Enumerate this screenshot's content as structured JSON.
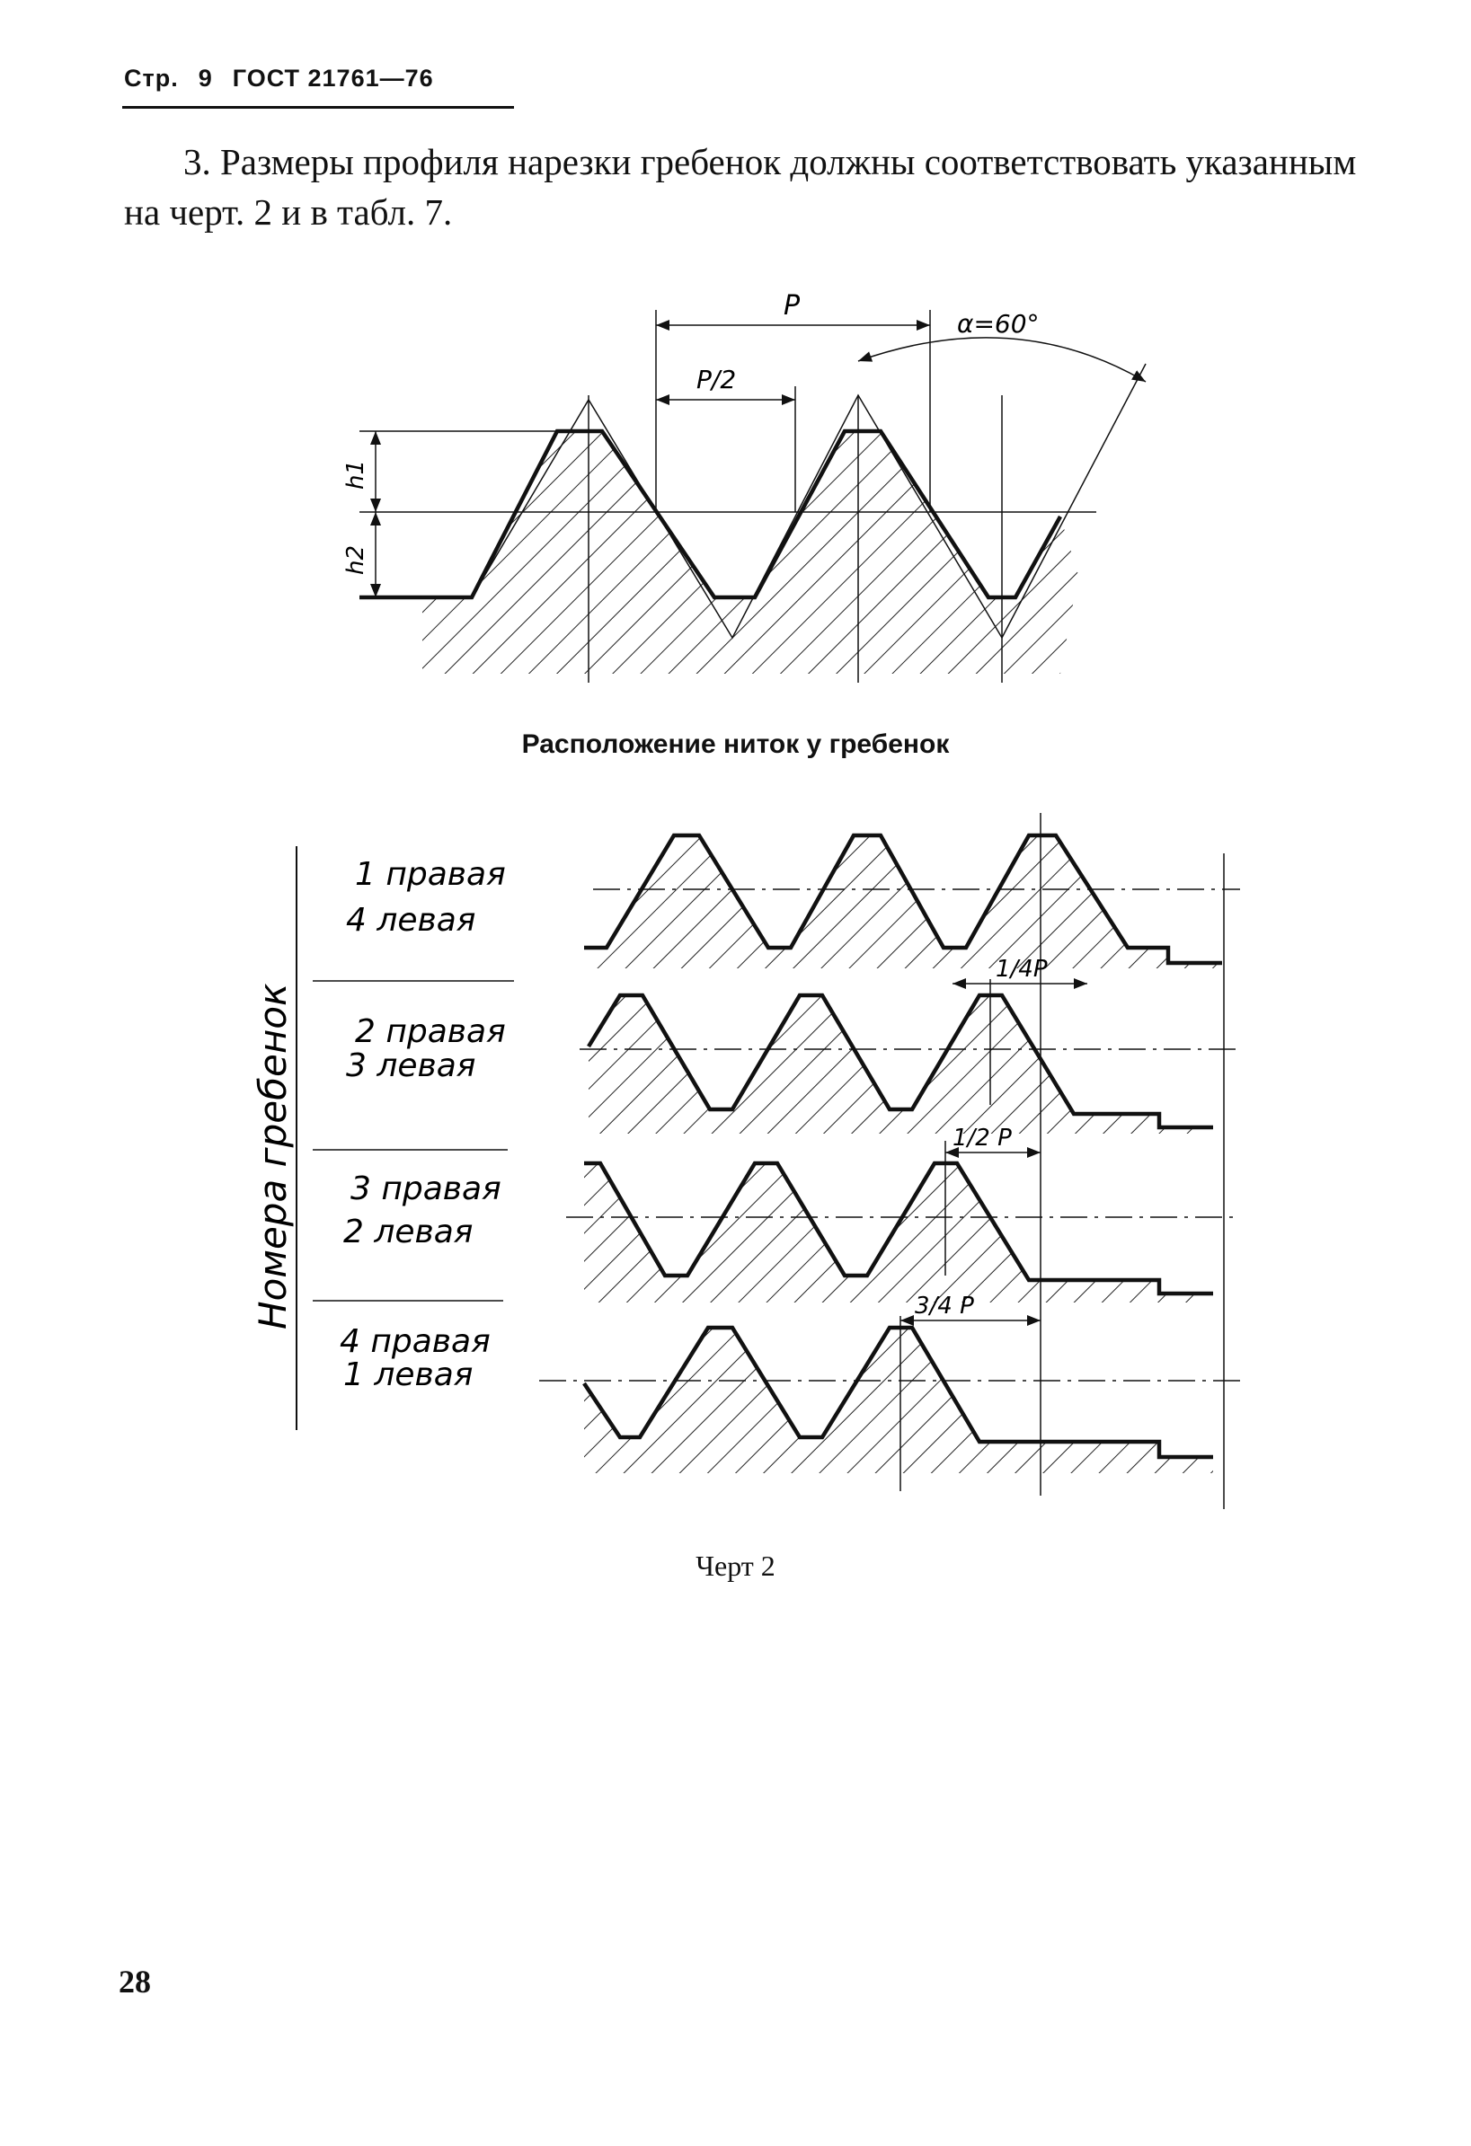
{
  "header": {
    "page_prefix": "Стр.",
    "page_number": "9",
    "standard": "ГОСТ 21761—76"
  },
  "paragraph": {
    "text": "3. Размеры профиля нарезки гребенок должны соответствовать указанным на черт. 2 и в табл. 7."
  },
  "profile_figure": {
    "pitch_label": "P",
    "half_pitch_label": "P/2",
    "angle_label": "α=60°",
    "h1_label": "h1",
    "h2_label": "h2"
  },
  "arrangement": {
    "title": "Расположение ниток у гребенок",
    "axis_label": "Номера гребенок",
    "rows": [
      {
        "line1": "1 правая",
        "line2": "4 левая",
        "offset_label": ""
      },
      {
        "line1": "2 правая",
        "line2": "3 левая",
        "offset_label": "1/4P"
      },
      {
        "line1": "3 правая",
        "line2": "2 левая",
        "offset_label": "1/2 P"
      },
      {
        "line1": "4 правая",
        "line2": "1 левая",
        "offset_label": "3/4 P"
      }
    ]
  },
  "figure_caption": "Черт 2",
  "page_footer_number": "28"
}
